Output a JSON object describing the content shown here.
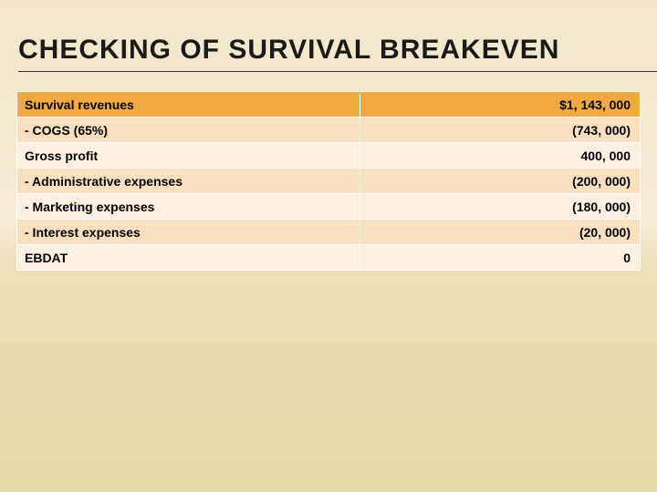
{
  "title": "CHECKING OF SURVIVAL BREAKEVEN",
  "table": {
    "type": "table",
    "columns": [
      {
        "key": "label",
        "align": "left",
        "width_pct": 55
      },
      {
        "key": "value",
        "align": "right",
        "width_pct": 45
      }
    ],
    "rows": [
      {
        "label": "Survival revenues",
        "value": "$1, 143, 000"
      },
      {
        "label": "- COGS (65%)",
        "value": "(743, 000)"
      },
      {
        "label": "Gross profit",
        "value": "400, 000"
      },
      {
        "label": "- Administrative expenses",
        "value": "(200, 000)"
      },
      {
        "label": "- Marketing expenses",
        "value": "(180, 000)"
      },
      {
        "label": "- Interest expenses",
        "value": "(20, 000)"
      },
      {
        "label": "EBDAT",
        "value": "0"
      }
    ],
    "row_colors": [
      "#f0a93e",
      "#fbe0bf",
      "#fdf0e1",
      "#fbe0bf",
      "#fdf0e1",
      "#fbe0bf",
      "#fdf0e1"
    ],
    "border_color": "#ffffff",
    "font_size": 14,
    "font_weight": 700
  },
  "background": {
    "gradient": [
      "#f2e7c9",
      "#f5ecd4",
      "#eddfb8",
      "#e8d8a8"
    ]
  },
  "title_style": {
    "font_size": 30,
    "letter_spacing": 1,
    "underline_color": "#333333",
    "color": "#1a1a1a"
  }
}
